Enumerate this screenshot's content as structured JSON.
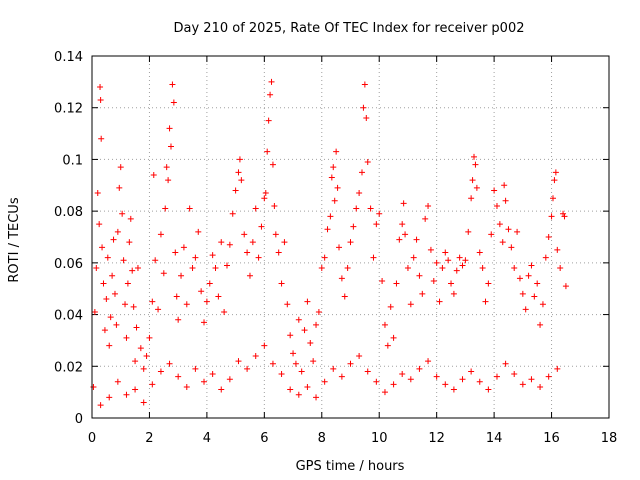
{
  "chart_data": {
    "type": "scatter",
    "title": "Day 210 of 2025, Rate Of TEC Index for receiver p002",
    "xlabel": "GPS time / hours",
    "ylabel": "ROTI / TECUs",
    "xlim": [
      0,
      18
    ],
    "ylim": [
      0,
      0.14
    ],
    "xticks": [
      0,
      2,
      4,
      6,
      8,
      10,
      12,
      14,
      16,
      18
    ],
    "xtick_labels": [
      "0",
      "2",
      "4",
      "6",
      "8",
      "10",
      "12",
      "14",
      "16",
      "18"
    ],
    "yticks": [
      0,
      0.02,
      0.04,
      0.06,
      0.08,
      0.1,
      0.12,
      0.14
    ],
    "ytick_labels": [
      "0",
      "0.02",
      "0.04",
      "0.06",
      "0.08",
      "0.1",
      "0.12",
      "0.14"
    ],
    "grid": true,
    "marker": "+",
    "color": "#ff0000",
    "series": [
      {
        "name": "ROTI p002",
        "points": [
          [
            0.05,
            0.012
          ],
          [
            0.1,
            0.041
          ],
          [
            0.15,
            0.058
          ],
          [
            0.2,
            0.087
          ],
          [
            0.25,
            0.075
          ],
          [
            0.28,
            0.128
          ],
          [
            0.3,
            0.123
          ],
          [
            0.32,
            0.108
          ],
          [
            0.35,
            0.066
          ],
          [
            0.4,
            0.052
          ],
          [
            0.45,
            0.034
          ],
          [
            0.5,
            0.046
          ],
          [
            0.55,
            0.062
          ],
          [
            0.6,
            0.028
          ],
          [
            0.65,
            0.039
          ],
          [
            0.7,
            0.055
          ],
          [
            0.75,
            0.069
          ],
          [
            0.8,
            0.048
          ],
          [
            0.85,
            0.036
          ],
          [
            0.9,
            0.072
          ],
          [
            0.95,
            0.089
          ],
          [
            1.0,
            0.097
          ],
          [
            1.05,
            0.079
          ],
          [
            1.1,
            0.061
          ],
          [
            1.15,
            0.044
          ],
          [
            1.2,
            0.031
          ],
          [
            1.25,
            0.052
          ],
          [
            1.3,
            0.068
          ],
          [
            1.35,
            0.077
          ],
          [
            1.4,
            0.057
          ],
          [
            1.45,
            0.043
          ],
          [
            1.5,
            0.022
          ],
          [
            1.55,
            0.035
          ],
          [
            1.6,
            0.058
          ],
          [
            1.7,
            0.027
          ],
          [
            1.8,
            0.019
          ],
          [
            1.9,
            0.024
          ],
          [
            2.0,
            0.031
          ],
          [
            2.1,
            0.045
          ],
          [
            2.15,
            0.094
          ],
          [
            2.2,
            0.061
          ],
          [
            2.3,
            0.042
          ],
          [
            2.4,
            0.071
          ],
          [
            2.5,
            0.056
          ],
          [
            2.55,
            0.081
          ],
          [
            2.6,
            0.097
          ],
          [
            2.65,
            0.092
          ],
          [
            2.7,
            0.112
          ],
          [
            2.75,
            0.105
          ],
          [
            2.8,
            0.129
          ],
          [
            2.85,
            0.122
          ],
          [
            2.9,
            0.064
          ],
          [
            2.95,
            0.047
          ],
          [
            3.0,
            0.038
          ],
          [
            3.1,
            0.055
          ],
          [
            3.2,
            0.066
          ],
          [
            3.3,
            0.044
          ],
          [
            3.4,
            0.081
          ],
          [
            3.5,
            0.058
          ],
          [
            3.6,
            0.062
          ],
          [
            3.7,
            0.072
          ],
          [
            3.8,
            0.049
          ],
          [
            3.9,
            0.037
          ],
          [
            4.0,
            0.045
          ],
          [
            4.1,
            0.052
          ],
          [
            4.2,
            0.063
          ],
          [
            4.3,
            0.058
          ],
          [
            4.4,
            0.047
          ],
          [
            4.5,
            0.068
          ],
          [
            4.6,
            0.041
          ],
          [
            4.7,
            0.059
          ],
          [
            4.8,
            0.067
          ],
          [
            4.9,
            0.079
          ],
          [
            5.0,
            0.088
          ],
          [
            5.1,
            0.095
          ],
          [
            5.15,
            0.1
          ],
          [
            5.2,
            0.092
          ],
          [
            5.3,
            0.071
          ],
          [
            5.4,
            0.064
          ],
          [
            5.5,
            0.055
          ],
          [
            5.6,
            0.068
          ],
          [
            5.7,
            0.081
          ],
          [
            5.8,
            0.062
          ],
          [
            5.9,
            0.074
          ],
          [
            6.0,
            0.085
          ],
          [
            6.05,
            0.087
          ],
          [
            6.1,
            0.103
          ],
          [
            6.15,
            0.115
          ],
          [
            6.2,
            0.125
          ],
          [
            6.25,
            0.13
          ],
          [
            6.3,
            0.098
          ],
          [
            6.35,
            0.082
          ],
          [
            6.4,
            0.071
          ],
          [
            6.5,
            0.064
          ],
          [
            6.6,
            0.052
          ],
          [
            6.7,
            0.068
          ],
          [
            6.8,
            0.044
          ],
          [
            6.9,
            0.032
          ],
          [
            7.0,
            0.025
          ],
          [
            7.1,
            0.021
          ],
          [
            7.2,
            0.038
          ],
          [
            7.3,
            0.018
          ],
          [
            7.4,
            0.034
          ],
          [
            7.5,
            0.045
          ],
          [
            7.6,
            0.029
          ],
          [
            7.7,
            0.022
          ],
          [
            7.8,
            0.036
          ],
          [
            7.9,
            0.041
          ],
          [
            8.0,
            0.058
          ],
          [
            8.1,
            0.062
          ],
          [
            8.2,
            0.073
          ],
          [
            8.3,
            0.078
          ],
          [
            8.35,
            0.093
          ],
          [
            8.4,
            0.097
          ],
          [
            8.45,
            0.084
          ],
          [
            8.5,
            0.103
          ],
          [
            8.55,
            0.089
          ],
          [
            8.6,
            0.066
          ],
          [
            8.7,
            0.054
          ],
          [
            8.8,
            0.047
          ],
          [
            8.9,
            0.058
          ],
          [
            9.0,
            0.068
          ],
          [
            9.1,
            0.074
          ],
          [
            9.2,
            0.081
          ],
          [
            9.3,
            0.087
          ],
          [
            9.4,
            0.095
          ],
          [
            9.45,
            0.12
          ],
          [
            9.5,
            0.129
          ],
          [
            9.55,
            0.116
          ],
          [
            9.6,
            0.099
          ],
          [
            9.7,
            0.081
          ],
          [
            9.8,
            0.062
          ],
          [
            9.9,
            0.075
          ],
          [
            10.0,
            0.079
          ],
          [
            10.1,
            0.053
          ],
          [
            10.2,
            0.036
          ],
          [
            10.3,
            0.028
          ],
          [
            10.4,
            0.043
          ],
          [
            10.5,
            0.031
          ],
          [
            10.6,
            0.052
          ],
          [
            10.7,
            0.069
          ],
          [
            10.8,
            0.075
          ],
          [
            10.85,
            0.083
          ],
          [
            10.9,
            0.071
          ],
          [
            11.0,
            0.058
          ],
          [
            11.1,
            0.044
          ],
          [
            11.2,
            0.062
          ],
          [
            11.3,
            0.069
          ],
          [
            11.4,
            0.055
          ],
          [
            11.5,
            0.048
          ],
          [
            11.6,
            0.077
          ],
          [
            11.7,
            0.082
          ],
          [
            11.8,
            0.065
          ],
          [
            11.9,
            0.053
          ],
          [
            12.0,
            0.06
          ],
          [
            12.1,
            0.045
          ],
          [
            12.2,
            0.058
          ],
          [
            12.3,
            0.064
          ],
          [
            12.4,
            0.061
          ],
          [
            12.5,
            0.052
          ],
          [
            12.6,
            0.048
          ],
          [
            12.7,
            0.057
          ],
          [
            12.8,
            0.062
          ],
          [
            12.9,
            0.059
          ],
          [
            13.0,
            0.061
          ],
          [
            13.1,
            0.072
          ],
          [
            13.2,
            0.085
          ],
          [
            13.25,
            0.092
          ],
          [
            13.3,
            0.101
          ],
          [
            13.35,
            0.098
          ],
          [
            13.4,
            0.089
          ],
          [
            13.5,
            0.064
          ],
          [
            13.6,
            0.058
          ],
          [
            13.7,
            0.045
          ],
          [
            13.8,
            0.052
          ],
          [
            13.9,
            0.071
          ],
          [
            14.0,
            0.088
          ],
          [
            14.1,
            0.082
          ],
          [
            14.2,
            0.075
          ],
          [
            14.3,
            0.068
          ],
          [
            14.35,
            0.09
          ],
          [
            14.4,
            0.084
          ],
          [
            14.5,
            0.073
          ],
          [
            14.6,
            0.066
          ],
          [
            14.7,
            0.058
          ],
          [
            14.8,
            0.072
          ],
          [
            14.9,
            0.054
          ],
          [
            15.0,
            0.048
          ],
          [
            15.1,
            0.042
          ],
          [
            15.2,
            0.055
          ],
          [
            15.3,
            0.059
          ],
          [
            15.4,
            0.047
          ],
          [
            15.5,
            0.052
          ],
          [
            15.6,
            0.036
          ],
          [
            15.7,
            0.044
          ],
          [
            15.8,
            0.062
          ],
          [
            15.9,
            0.07
          ],
          [
            16.0,
            0.078
          ],
          [
            16.05,
            0.085
          ],
          [
            16.1,
            0.092
          ],
          [
            16.15,
            0.095
          ],
          [
            16.2,
            0.065
          ],
          [
            16.3,
            0.058
          ],
          [
            16.4,
            0.079
          ],
          [
            16.45,
            0.078
          ],
          [
            16.5,
            0.051
          ],
          [
            0.3,
            0.005
          ],
          [
            0.6,
            0.008
          ],
          [
            0.9,
            0.014
          ],
          [
            1.2,
            0.009
          ],
          [
            1.5,
            0.011
          ],
          [
            1.8,
            0.006
          ],
          [
            2.1,
            0.013
          ],
          [
            2.4,
            0.018
          ],
          [
            2.7,
            0.021
          ],
          [
            3.0,
            0.016
          ],
          [
            3.3,
            0.012
          ],
          [
            3.6,
            0.019
          ],
          [
            3.9,
            0.014
          ],
          [
            4.2,
            0.017
          ],
          [
            4.5,
            0.011
          ],
          [
            4.8,
            0.015
          ],
          [
            5.1,
            0.022
          ],
          [
            5.4,
            0.019
          ],
          [
            5.7,
            0.024
          ],
          [
            6.0,
            0.028
          ],
          [
            6.3,
            0.021
          ],
          [
            6.6,
            0.017
          ],
          [
            6.9,
            0.011
          ],
          [
            7.2,
            0.009
          ],
          [
            7.5,
            0.012
          ],
          [
            7.8,
            0.008
          ],
          [
            8.1,
            0.014
          ],
          [
            8.4,
            0.019
          ],
          [
            8.7,
            0.016
          ],
          [
            9.0,
            0.021
          ],
          [
            9.3,
            0.024
          ],
          [
            9.6,
            0.018
          ],
          [
            9.9,
            0.014
          ],
          [
            10.2,
            0.01
          ],
          [
            10.5,
            0.013
          ],
          [
            10.8,
            0.017
          ],
          [
            11.1,
            0.015
          ],
          [
            11.4,
            0.019
          ],
          [
            11.7,
            0.022
          ],
          [
            12.0,
            0.016
          ],
          [
            12.3,
            0.013
          ],
          [
            12.6,
            0.011
          ],
          [
            12.9,
            0.015
          ],
          [
            13.2,
            0.018
          ],
          [
            13.5,
            0.014
          ],
          [
            13.8,
            0.011
          ],
          [
            14.1,
            0.016
          ],
          [
            14.4,
            0.021
          ],
          [
            14.7,
            0.017
          ],
          [
            15.0,
            0.013
          ],
          [
            15.3,
            0.015
          ],
          [
            15.6,
            0.012
          ],
          [
            15.9,
            0.016
          ],
          [
            16.2,
            0.019
          ]
        ]
      }
    ]
  }
}
